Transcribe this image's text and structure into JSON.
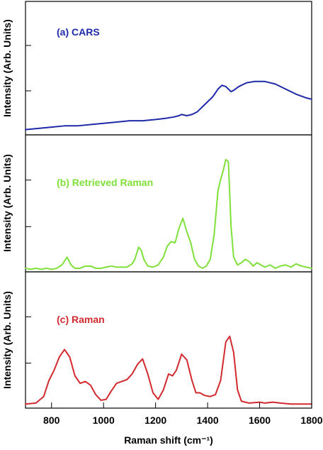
{
  "chart_data": [
    {
      "type": "line",
      "title": "(a) CARS",
      "ylabel": "Intensity (Arb. Units)",
      "xlim": [
        700,
        1800
      ],
      "ylim": [
        0,
        1
      ],
      "colors": {
        "line": "#1f2aa8"
      },
      "series": [
        {
          "points": [
            [
              700,
              0.02
            ],
            [
              750,
              0.03
            ],
            [
              800,
              0.04
            ],
            [
              850,
              0.05
            ],
            [
              900,
              0.05
            ],
            [
              950,
              0.06
            ],
            [
              1000,
              0.07
            ],
            [
              1050,
              0.08
            ],
            [
              1100,
              0.09
            ],
            [
              1150,
              0.09
            ],
            [
              1200,
              0.1
            ],
            [
              1240,
              0.11
            ],
            [
              1270,
              0.12
            ],
            [
              1290,
              0.13
            ],
            [
              1300,
              0.14
            ],
            [
              1320,
              0.13
            ],
            [
              1340,
              0.14
            ],
            [
              1360,
              0.16
            ],
            [
              1380,
              0.2
            ],
            [
              1400,
              0.24
            ],
            [
              1420,
              0.28
            ],
            [
              1440,
              0.34
            ],
            [
              1455,
              0.37
            ],
            [
              1470,
              0.36
            ],
            [
              1480,
              0.34
            ],
            [
              1490,
              0.32
            ],
            [
              1500,
              0.33
            ],
            [
              1520,
              0.36
            ],
            [
              1550,
              0.39
            ],
            [
              1580,
              0.4
            ],
            [
              1620,
              0.4
            ],
            [
              1660,
              0.38
            ],
            [
              1700,
              0.34
            ],
            [
              1740,
              0.3
            ],
            [
              1780,
              0.27
            ],
            [
              1800,
              0.26
            ]
          ]
        }
      ]
    },
    {
      "type": "line",
      "title": "(b) Retrieved Raman",
      "ylabel": "Intensity (Arb. Units)",
      "xlim": [
        700,
        1800
      ],
      "ylim": [
        0,
        1
      ],
      "colors": {
        "line": "#7fe03a"
      },
      "series": [
        {
          "points": [
            [
              700,
              0.02
            ],
            [
              720,
              0.01
            ],
            [
              740,
              0.02
            ],
            [
              760,
              0.01
            ],
            [
              780,
              0.02
            ],
            [
              800,
              0.01
            ],
            [
              820,
              0.02
            ],
            [
              840,
              0.05
            ],
            [
              860,
              0.12
            ],
            [
              875,
              0.05
            ],
            [
              890,
              0.02
            ],
            [
              910,
              0.02
            ],
            [
              930,
              0.04
            ],
            [
              950,
              0.04
            ],
            [
              970,
              0.02
            ],
            [
              990,
              0.02
            ],
            [
              1010,
              0.03
            ],
            [
              1030,
              0.04
            ],
            [
              1050,
              0.03
            ],
            [
              1070,
              0.03
            ],
            [
              1090,
              0.03
            ],
            [
              1110,
              0.06
            ],
            [
              1120,
              0.1
            ],
            [
              1135,
              0.21
            ],
            [
              1145,
              0.18
            ],
            [
              1155,
              0.1
            ],
            [
              1170,
              0.04
            ],
            [
              1190,
              0.03
            ],
            [
              1210,
              0.05
            ],
            [
              1230,
              0.12
            ],
            [
              1245,
              0.22
            ],
            [
              1260,
              0.26
            ],
            [
              1275,
              0.25
            ],
            [
              1290,
              0.38
            ],
            [
              1305,
              0.47
            ],
            [
              1320,
              0.35
            ],
            [
              1335,
              0.25
            ],
            [
              1350,
              0.1
            ],
            [
              1365,
              0.04
            ],
            [
              1380,
              0.02
            ],
            [
              1395,
              0.04
            ],
            [
              1410,
              0.1
            ],
            [
              1425,
              0.32
            ],
            [
              1440,
              0.72
            ],
            [
              1450,
              0.82
            ],
            [
              1460,
              0.9
            ],
            [
              1470,
              1.0
            ],
            [
              1480,
              0.98
            ],
            [
              1490,
              0.4
            ],
            [
              1500,
              0.12
            ],
            [
              1515,
              0.05
            ],
            [
              1530,
              0.07
            ],
            [
              1545,
              0.1
            ],
            [
              1560,
              0.08
            ],
            [
              1575,
              0.04
            ],
            [
              1590,
              0.07
            ],
            [
              1605,
              0.05
            ],
            [
              1620,
              0.03
            ],
            [
              1640,
              0.05
            ],
            [
              1660,
              0.02
            ],
            [
              1680,
              0.04
            ],
            [
              1700,
              0.05
            ],
            [
              1720,
              0.03
            ],
            [
              1740,
              0.06
            ],
            [
              1760,
              0.04
            ],
            [
              1780,
              0.03
            ],
            [
              1800,
              0.02
            ]
          ]
        }
      ]
    },
    {
      "type": "line",
      "title": "(c) Raman",
      "ylabel": "Intensity (Arb. Units)",
      "xlabel": "Raman shift (cm⁻¹)",
      "xlim": [
        700,
        1800
      ],
      "ylim": [
        0,
        1
      ],
      "xticks": [
        800,
        1000,
        1200,
        1400,
        1600,
        1800
      ],
      "colors": {
        "line": "#d22a2f"
      },
      "series": [
        {
          "points": [
            [
              700,
              0.0
            ],
            [
              740,
              0.01
            ],
            [
              770,
              0.08
            ],
            [
              790,
              0.25
            ],
            [
              810,
              0.36
            ],
            [
              830,
              0.5
            ],
            [
              850,
              0.58
            ],
            [
              870,
              0.5
            ],
            [
              890,
              0.3
            ],
            [
              910,
              0.22
            ],
            [
              930,
              0.24
            ],
            [
              950,
              0.2
            ],
            [
              970,
              0.1
            ],
            [
              990,
              0.04
            ],
            [
              1010,
              0.05
            ],
            [
              1030,
              0.14
            ],
            [
              1050,
              0.22
            ],
            [
              1070,
              0.24
            ],
            [
              1090,
              0.26
            ],
            [
              1110,
              0.32
            ],
            [
              1130,
              0.42
            ],
            [
              1150,
              0.48
            ],
            [
              1170,
              0.32
            ],
            [
              1190,
              0.12
            ],
            [
              1210,
              0.05
            ],
            [
              1230,
              0.15
            ],
            [
              1250,
              0.32
            ],
            [
              1265,
              0.3
            ],
            [
              1280,
              0.36
            ],
            [
              1300,
              0.53
            ],
            [
              1320,
              0.47
            ],
            [
              1340,
              0.25
            ],
            [
              1355,
              0.12
            ],
            [
              1370,
              0.12
            ],
            [
              1390,
              0.09
            ],
            [
              1410,
              0.08
            ],
            [
              1430,
              0.1
            ],
            [
              1450,
              0.25
            ],
            [
              1470,
              0.66
            ],
            [
              1485,
              0.72
            ],
            [
              1500,
              0.55
            ],
            [
              1515,
              0.15
            ],
            [
              1530,
              0.03
            ],
            [
              1560,
              0.01
            ],
            [
              1600,
              0.02
            ],
            [
              1620,
              0.01
            ],
            [
              1650,
              0.02
            ],
            [
              1680,
              0.01
            ],
            [
              1720,
              0.0
            ],
            [
              1760,
              0.0
            ],
            [
              1800,
              0.0
            ]
          ]
        }
      ]
    }
  ]
}
